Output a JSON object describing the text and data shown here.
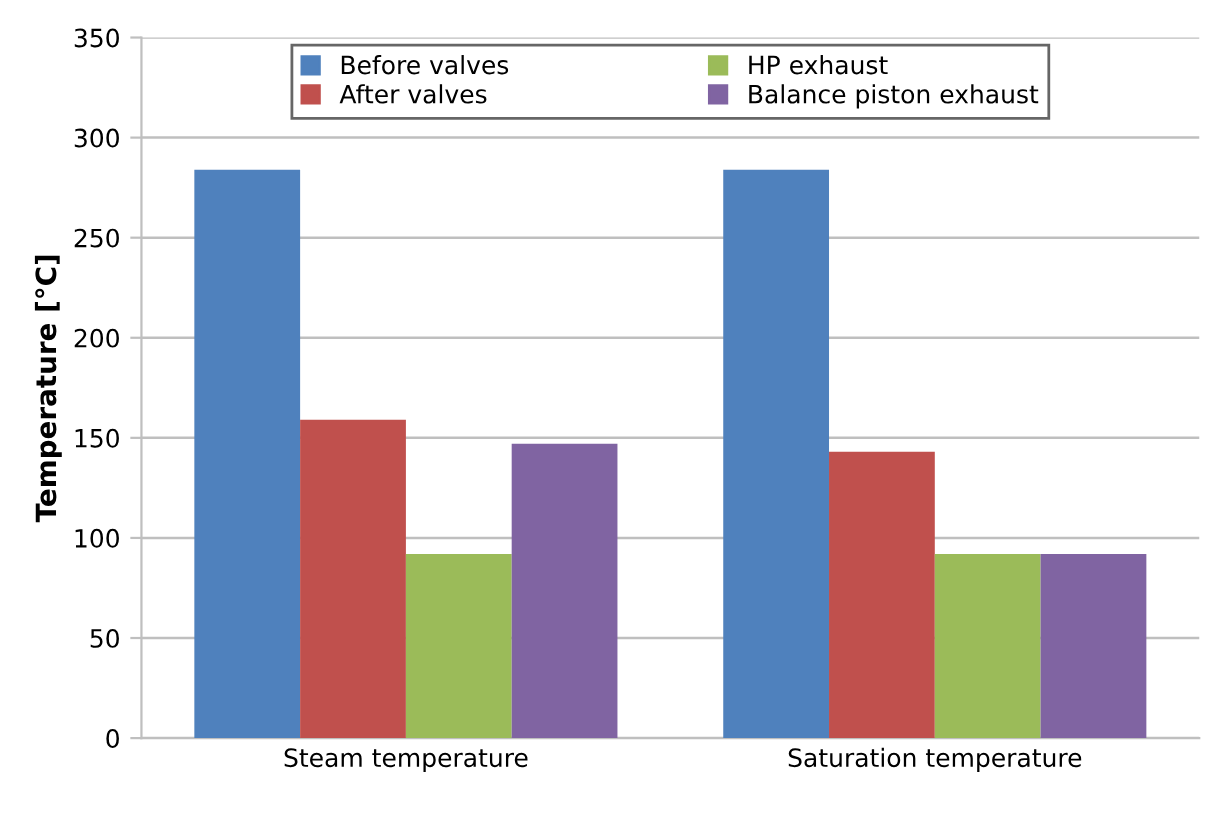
{
  "chart_data": {
    "type": "bar",
    "ylabel": "Temperature [°C]",
    "categories": [
      "Steam temperature",
      "Saturation temperature"
    ],
    "series": [
      {
        "name": "Before valves",
        "color": "#4f81bd",
        "values": [
          284,
          284
        ]
      },
      {
        "name": "After valves",
        "color": "#c0504d",
        "values": [
          159,
          143
        ]
      },
      {
        "name": "HP exhaust",
        "color": "#9bbb59",
        "values": [
          92,
          92
        ]
      },
      {
        "name": "Balance piston exhaust",
        "color": "#8064a2",
        "values": [
          147,
          92
        ]
      }
    ],
    "ylim": [
      0,
      350
    ],
    "yticks": [
      0,
      50,
      100,
      150,
      200,
      250,
      300,
      350
    ],
    "grid": "y",
    "legend": "top"
  }
}
